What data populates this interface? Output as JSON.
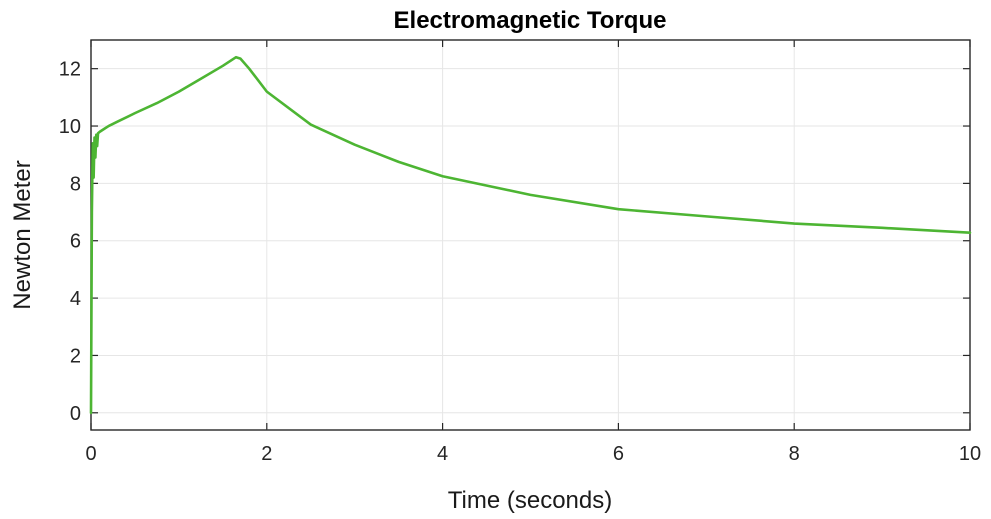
{
  "chart_data": {
    "type": "line",
    "title": "Electromagnetic Torque",
    "xlabel": "Time (seconds)",
    "ylabel": "Newton Meter",
    "xlim": [
      0,
      10
    ],
    "ylim": [
      -0.6,
      13
    ],
    "xticks": [
      0,
      2,
      4,
      6,
      8,
      10
    ],
    "yticks": [
      0,
      2,
      4,
      6,
      8,
      10,
      12
    ],
    "grid": true,
    "line_color": "#4db533",
    "series": [
      {
        "x": [
          0,
          0.01,
          0.02,
          0.03,
          0.04,
          0.05,
          0.06,
          0.07,
          0.08,
          0.1,
          0.15,
          0.2,
          0.3,
          0.5,
          0.75,
          1.0,
          1.25,
          1.5,
          1.6,
          1.65,
          1.7,
          1.8,
          2.0,
          2.5,
          3.0,
          3.5,
          4.0,
          5.0,
          6.0,
          7.0,
          8.0,
          9.0,
          10.0
        ],
        "y": [
          0,
          7.0,
          9.4,
          8.2,
          9.6,
          8.9,
          9.7,
          9.3,
          9.75,
          9.8,
          9.9,
          10.0,
          10.15,
          10.45,
          10.8,
          11.2,
          11.65,
          12.1,
          12.3,
          12.4,
          12.35,
          12.0,
          11.2,
          10.05,
          9.35,
          8.75,
          8.25,
          7.6,
          7.1,
          6.85,
          6.6,
          6.45,
          6.28
        ]
      }
    ]
  }
}
